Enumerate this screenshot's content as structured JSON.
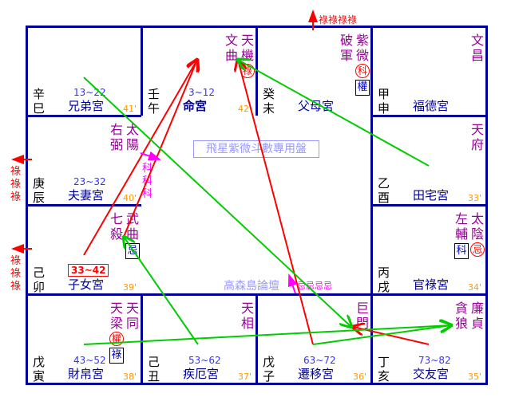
{
  "chart_title": "飛星紫微斗數專用盤",
  "forum": "高森島論壇",
  "annotations": {
    "top_lu": "祿祿祿祿",
    "left_lu_upper": "祿祿祿",
    "left_lu_lower": "祿祿祿",
    "ji_marks": "忌忌忌忌",
    "ke_marks": "科科科"
  },
  "colors": {
    "grid": "#000099",
    "star": "#990099",
    "palace": "#000099",
    "age": "#ff9900",
    "lu_arrow": "#ff0000",
    "ji_arrow": "#00cc00",
    "ke_arrow": "#ff00ff"
  },
  "cells": [
    {
      "branch": "巳",
      "stem": "辛巳",
      "range": "13~22",
      "palace": "兄弟宮",
      "age": "41'",
      "stars": []
    },
    {
      "branch": "午",
      "stem": "壬午",
      "range": "3~12",
      "palace": "命宮",
      "bold": true,
      "age": "42'",
      "stars": [
        {
          "name": "天機",
          "circle": "祿"
        },
        {
          "name": "文曲"
        }
      ]
    },
    {
      "branch": "未",
      "stem": "癸未",
      "range": "",
      "palace": "父母宮",
      "age": "",
      "stars": [
        {
          "name": "紫微",
          "circle": "科",
          "box": "權"
        },
        {
          "name": "破軍"
        }
      ]
    },
    {
      "branch": "申",
      "stem": "甲申",
      "range": "",
      "palace": "福德宮",
      "age": "",
      "stars": [
        {
          "name": "文昌"
        }
      ]
    },
    {
      "branch": "辰",
      "stem": "庚辰",
      "range": "23~32",
      "palace": "夫妻宮",
      "age": "40'",
      "stars": [
        {
          "name": "太陽"
        },
        {
          "name": "右弼"
        }
      ]
    },
    {
      "branch": "酉",
      "stem": "乙酉",
      "range": "",
      "palace": "田宅宮",
      "age": "33'",
      "stars": [
        {
          "name": "天府"
        }
      ]
    },
    {
      "branch": "卯",
      "stem": "己卯",
      "range": "33~42",
      "range_boxed": true,
      "palace": "子女宮",
      "age": "39'",
      "stars": [
        {
          "name": "武曲",
          "box": "忌"
        },
        {
          "name": "七殺"
        }
      ]
    },
    {
      "branch": "戌",
      "stem": "丙戌",
      "range": "",
      "palace": "官祿宮",
      "age": "34'",
      "stars": [
        {
          "name": "太陰",
          "circle": "忌"
        },
        {
          "name": "左輔",
          "box": "科"
        }
      ]
    },
    {
      "branch": "寅",
      "stem": "戊寅",
      "range": "43~52",
      "palace": "財帛宮",
      "age": "38'",
      "stars": [
        {
          "name": "天同"
        },
        {
          "name": "天梁",
          "circle": "權",
          "box": "祿"
        }
      ]
    },
    {
      "branch": "丑",
      "stem": "己丑",
      "range": "53~62",
      "palace": "疾厄宮",
      "age": "37'",
      "stars": [
        {
          "name": "天相"
        }
      ]
    },
    {
      "branch": "子",
      "stem": "戊子",
      "range": "63~72",
      "palace": "遷移宮",
      "age": "36'",
      "stars": [
        {
          "name": "巨門"
        }
      ]
    },
    {
      "branch": "亥",
      "stem": "丁亥",
      "range": "73~82",
      "palace": "交友宮",
      "age": "35'",
      "stars": [
        {
          "name": "廉貞"
        },
        {
          "name": "貪狼"
        }
      ]
    }
  ]
}
